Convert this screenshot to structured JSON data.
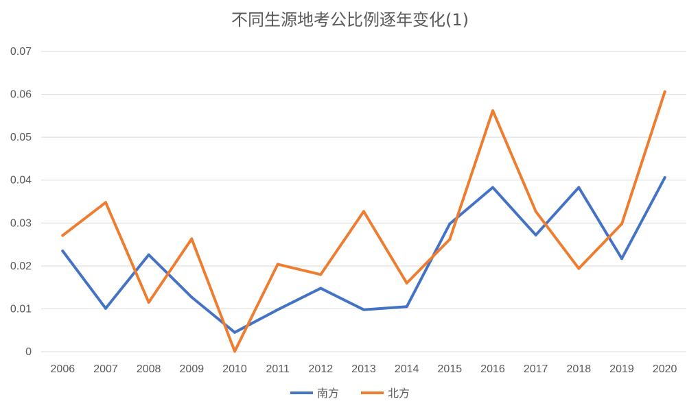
{
  "chart_data": {
    "type": "line",
    "title": "不同生源地考公比例逐年变化(1)",
    "xlabel": "",
    "ylabel": "",
    "categories": [
      "2006",
      "2007",
      "2008",
      "2009",
      "2010",
      "2011",
      "2012",
      "2013",
      "2014",
      "2015",
      "2016",
      "2017",
      "2018",
      "2019",
      "2020"
    ],
    "y_ticks": [
      "0",
      "0.01",
      "0.02",
      "0.03",
      "0.04",
      "0.05",
      "0.06",
      "0.07"
    ],
    "ylim": [
      0,
      0.07
    ],
    "grid": true,
    "legend_position": "bottom",
    "series": [
      {
        "name": "南方",
        "color": "#4472c4",
        "values": [
          0.0235,
          0.0101,
          0.0226,
          0.0127,
          0.0045,
          0.0098,
          0.0148,
          0.0098,
          0.0105,
          0.0298,
          0.0383,
          0.0272,
          0.0383,
          0.0217,
          0.0406
        ]
      },
      {
        "name": "北方",
        "color": "#ed7d31",
        "values": [
          0.0271,
          0.0348,
          0.0115,
          0.0263,
          0.0001,
          0.0204,
          0.018,
          0.0327,
          0.016,
          0.0262,
          0.0562,
          0.0327,
          0.0194,
          0.0298,
          0.0606
        ]
      }
    ]
  }
}
